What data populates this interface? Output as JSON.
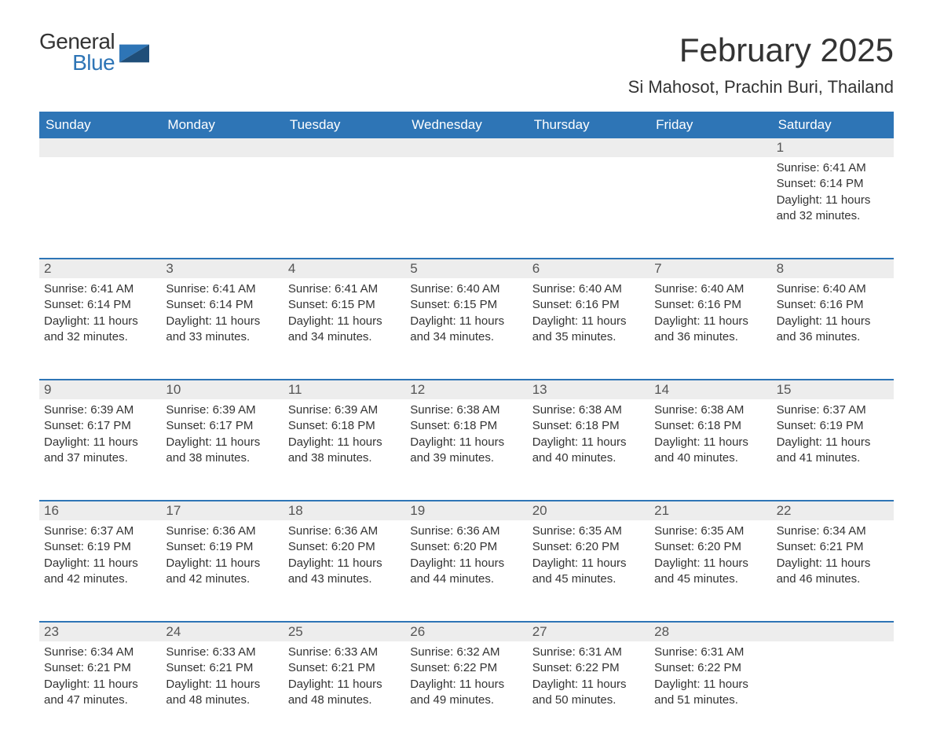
{
  "logo": {
    "word1": "General",
    "word2": "Blue",
    "color1": "#333333",
    "color2": "#2e75b6"
  },
  "title": "February 2025",
  "location": "Si Mahosot, Prachin Buri, Thailand",
  "styling": {
    "header_bg": "#2e75b6",
    "header_text": "#ffffff",
    "strip_bg": "#ededed",
    "strip_border": "#2e75b6",
    "body_bg": "#ffffff",
    "text_color": "#333333",
    "title_fontsize": 42,
    "location_fontsize": 22,
    "dow_fontsize": 17,
    "body_fontsize": 15
  },
  "days_of_week": [
    "Sunday",
    "Monday",
    "Tuesday",
    "Wednesday",
    "Thursday",
    "Friday",
    "Saturday"
  ],
  "weeks": [
    [
      null,
      null,
      null,
      null,
      null,
      null,
      {
        "n": "1",
        "sr": "Sunrise: 6:41 AM",
        "ss": "Sunset: 6:14 PM",
        "dl": "Daylight: 11 hours and 32 minutes."
      }
    ],
    [
      {
        "n": "2",
        "sr": "Sunrise: 6:41 AM",
        "ss": "Sunset: 6:14 PM",
        "dl": "Daylight: 11 hours and 32 minutes."
      },
      {
        "n": "3",
        "sr": "Sunrise: 6:41 AM",
        "ss": "Sunset: 6:14 PM",
        "dl": "Daylight: 11 hours and 33 minutes."
      },
      {
        "n": "4",
        "sr": "Sunrise: 6:41 AM",
        "ss": "Sunset: 6:15 PM",
        "dl": "Daylight: 11 hours and 34 minutes."
      },
      {
        "n": "5",
        "sr": "Sunrise: 6:40 AM",
        "ss": "Sunset: 6:15 PM",
        "dl": "Daylight: 11 hours and 34 minutes."
      },
      {
        "n": "6",
        "sr": "Sunrise: 6:40 AM",
        "ss": "Sunset: 6:16 PM",
        "dl": "Daylight: 11 hours and 35 minutes."
      },
      {
        "n": "7",
        "sr": "Sunrise: 6:40 AM",
        "ss": "Sunset: 6:16 PM",
        "dl": "Daylight: 11 hours and 36 minutes."
      },
      {
        "n": "8",
        "sr": "Sunrise: 6:40 AM",
        "ss": "Sunset: 6:16 PM",
        "dl": "Daylight: 11 hours and 36 minutes."
      }
    ],
    [
      {
        "n": "9",
        "sr": "Sunrise: 6:39 AM",
        "ss": "Sunset: 6:17 PM",
        "dl": "Daylight: 11 hours and 37 minutes."
      },
      {
        "n": "10",
        "sr": "Sunrise: 6:39 AM",
        "ss": "Sunset: 6:17 PM",
        "dl": "Daylight: 11 hours and 38 minutes."
      },
      {
        "n": "11",
        "sr": "Sunrise: 6:39 AM",
        "ss": "Sunset: 6:18 PM",
        "dl": "Daylight: 11 hours and 38 minutes."
      },
      {
        "n": "12",
        "sr": "Sunrise: 6:38 AM",
        "ss": "Sunset: 6:18 PM",
        "dl": "Daylight: 11 hours and 39 minutes."
      },
      {
        "n": "13",
        "sr": "Sunrise: 6:38 AM",
        "ss": "Sunset: 6:18 PM",
        "dl": "Daylight: 11 hours and 40 minutes."
      },
      {
        "n": "14",
        "sr": "Sunrise: 6:38 AM",
        "ss": "Sunset: 6:18 PM",
        "dl": "Daylight: 11 hours and 40 minutes."
      },
      {
        "n": "15",
        "sr": "Sunrise: 6:37 AM",
        "ss": "Sunset: 6:19 PM",
        "dl": "Daylight: 11 hours and 41 minutes."
      }
    ],
    [
      {
        "n": "16",
        "sr": "Sunrise: 6:37 AM",
        "ss": "Sunset: 6:19 PM",
        "dl": "Daylight: 11 hours and 42 minutes."
      },
      {
        "n": "17",
        "sr": "Sunrise: 6:36 AM",
        "ss": "Sunset: 6:19 PM",
        "dl": "Daylight: 11 hours and 42 minutes."
      },
      {
        "n": "18",
        "sr": "Sunrise: 6:36 AM",
        "ss": "Sunset: 6:20 PM",
        "dl": "Daylight: 11 hours and 43 minutes."
      },
      {
        "n": "19",
        "sr": "Sunrise: 6:36 AM",
        "ss": "Sunset: 6:20 PM",
        "dl": "Daylight: 11 hours and 44 minutes."
      },
      {
        "n": "20",
        "sr": "Sunrise: 6:35 AM",
        "ss": "Sunset: 6:20 PM",
        "dl": "Daylight: 11 hours and 45 minutes."
      },
      {
        "n": "21",
        "sr": "Sunrise: 6:35 AM",
        "ss": "Sunset: 6:20 PM",
        "dl": "Daylight: 11 hours and 45 minutes."
      },
      {
        "n": "22",
        "sr": "Sunrise: 6:34 AM",
        "ss": "Sunset: 6:21 PM",
        "dl": "Daylight: 11 hours and 46 minutes."
      }
    ],
    [
      {
        "n": "23",
        "sr": "Sunrise: 6:34 AM",
        "ss": "Sunset: 6:21 PM",
        "dl": "Daylight: 11 hours and 47 minutes."
      },
      {
        "n": "24",
        "sr": "Sunrise: 6:33 AM",
        "ss": "Sunset: 6:21 PM",
        "dl": "Daylight: 11 hours and 48 minutes."
      },
      {
        "n": "25",
        "sr": "Sunrise: 6:33 AM",
        "ss": "Sunset: 6:21 PM",
        "dl": "Daylight: 11 hours and 48 minutes."
      },
      {
        "n": "26",
        "sr": "Sunrise: 6:32 AM",
        "ss": "Sunset: 6:22 PM",
        "dl": "Daylight: 11 hours and 49 minutes."
      },
      {
        "n": "27",
        "sr": "Sunrise: 6:31 AM",
        "ss": "Sunset: 6:22 PM",
        "dl": "Daylight: 11 hours and 50 minutes."
      },
      {
        "n": "28",
        "sr": "Sunrise: 6:31 AM",
        "ss": "Sunset: 6:22 PM",
        "dl": "Daylight: 11 hours and 51 minutes."
      },
      null
    ]
  ]
}
